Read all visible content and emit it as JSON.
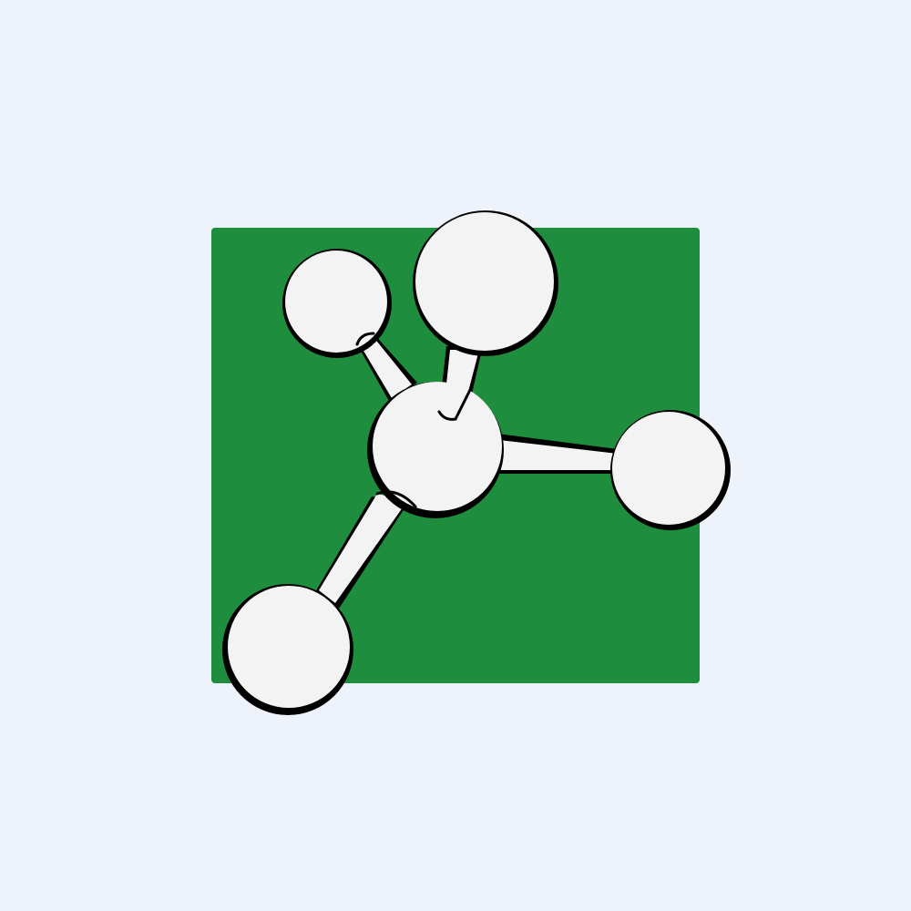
{
  "colors": {
    "background": "#EEF2FA",
    "square": "#1E8E3E",
    "atom_fill": "#F3F3F3",
    "outline": "#000000"
  },
  "logo": {
    "icon": "molecule-icon",
    "atoms": [
      "central-atom",
      "top-left-atom",
      "top-atom",
      "right-atom",
      "bottom-left-atom"
    ],
    "bonds": [
      "bond-top-left",
      "bond-top",
      "bond-right",
      "bond-bottom-left"
    ]
  }
}
